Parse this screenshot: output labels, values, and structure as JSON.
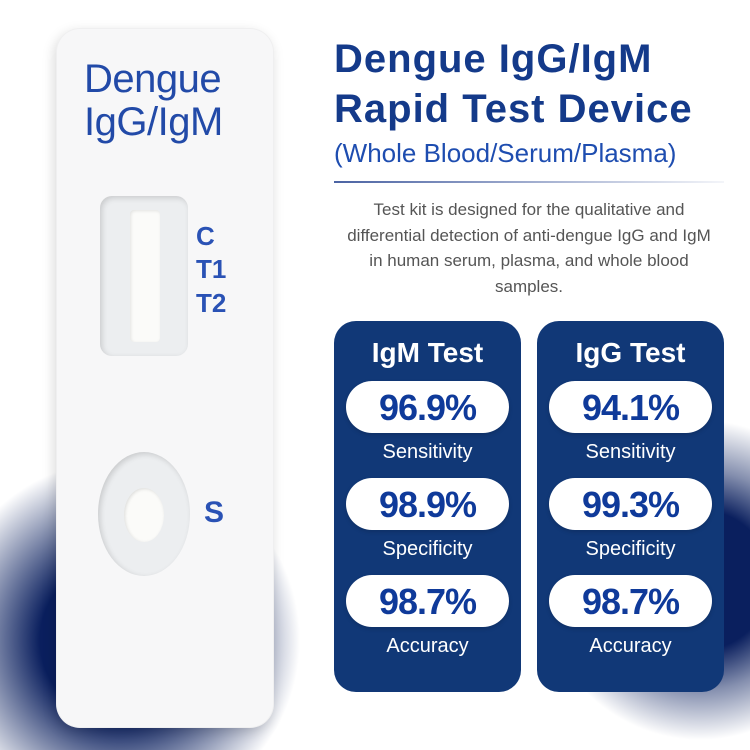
{
  "colors": {
    "brand_blue": "#143a8a",
    "brand_blue_text": "#0f3a9a",
    "light_blue": "#2a52b5",
    "card_bg": "#113877",
    "pill_text": "#0f3a9a",
    "subtitle_blue": "#1e4db0"
  },
  "device": {
    "name_line1": "Dengue",
    "name_line2": "IgG/IgM",
    "markers": [
      "C",
      "T1",
      "T2"
    ],
    "sample_label": "S"
  },
  "header": {
    "title_line1": "Dengue IgG/IgM",
    "title_line2": "Rapid Test Device",
    "subtitle": "(Whole Blood/Serum/Plasma)",
    "description": "Test kit is designed for the qualitative and differential detection of anti-dengue IgG and IgM in human serum, plasma, and whole blood samples."
  },
  "cards": [
    {
      "title": "IgM Test",
      "metrics": [
        {
          "value": "96.9%",
          "label": "Sensitivity"
        },
        {
          "value": "98.9%",
          "label": "Specificity"
        },
        {
          "value": "98.7%",
          "label": "Accuracy"
        }
      ]
    },
    {
      "title": "IgG Test",
      "metrics": [
        {
          "value": "94.1%",
          "label": "Sensitivity"
        },
        {
          "value": "99.3%",
          "label": "Specificity"
        },
        {
          "value": "98.7%",
          "label": "Accuracy"
        }
      ]
    }
  ]
}
